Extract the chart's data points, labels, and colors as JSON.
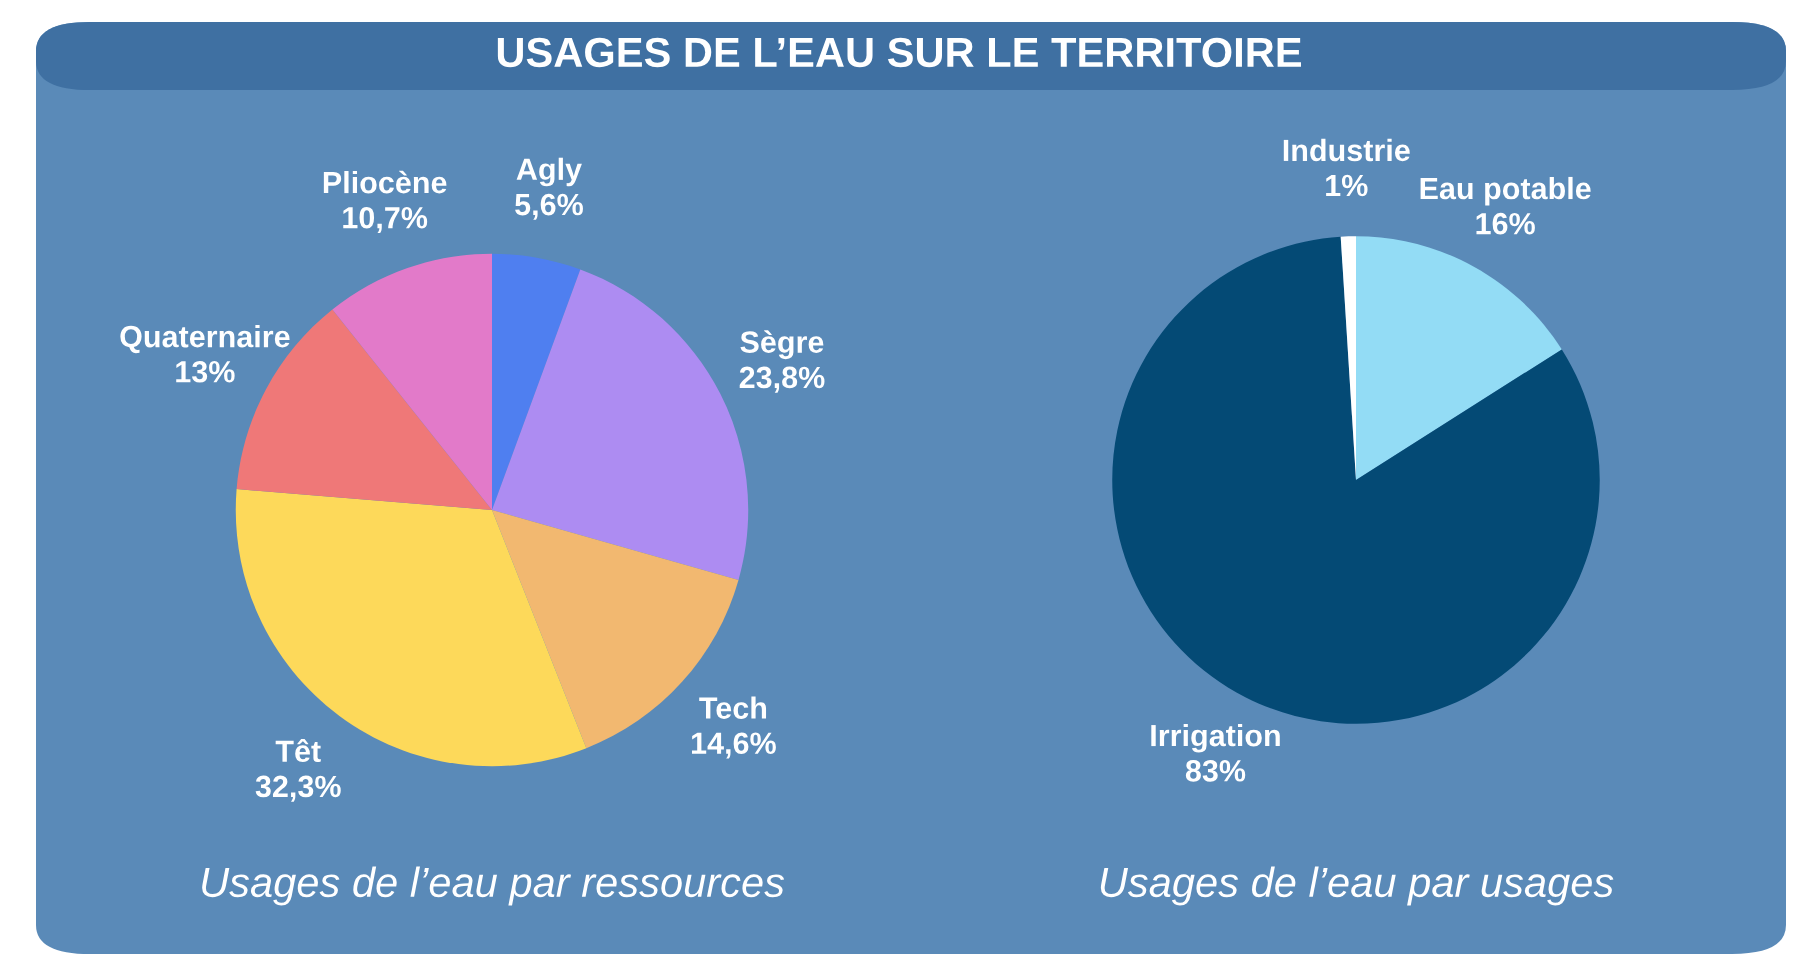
{
  "chart_data": [
    {
      "type": "pie",
      "title": "USAGES DE L’EAU SUR LE TERRITOIRE",
      "xlabel": "Usages de l’eau par ressources",
      "categories": [
        "Agly",
        "Sègre",
        "Tech",
        "Têt",
        "Quaternaire",
        "Pliocène"
      ],
      "values": [
        5.6,
        23.8,
        14.6,
        32.3,
        13,
        10.7
      ],
      "value_labels": [
        "5,6%",
        "23,8%",
        "14,6%",
        "32,3%",
        "13%",
        "10,7%"
      ],
      "colors": [
        "#4f7ff0",
        "#ad8cf2",
        "#f2b870",
        "#fdd95a",
        "#ef7878",
        "#e27ac9"
      ]
    },
    {
      "type": "pie",
      "xlabel": "Usages de l’eau par usages",
      "categories": [
        "Eau potable",
        "Irrigation",
        "Industrie"
      ],
      "values": [
        16,
        83,
        1
      ],
      "value_labels": [
        "16%",
        "83%",
        "1%"
      ],
      "colors": [
        "#93dcf5",
        "#044a75",
        "#ffffff"
      ]
    }
  ]
}
